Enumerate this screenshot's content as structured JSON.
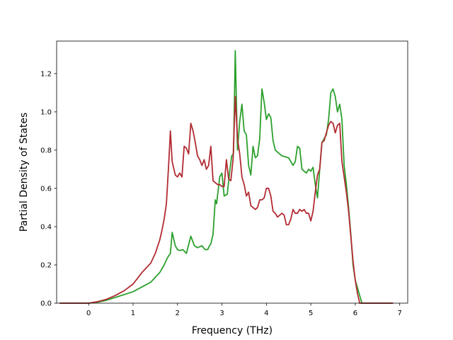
{
  "chart_data": {
    "type": "line",
    "title": "",
    "xlabel": "Frequency (THz)",
    "ylabel": "Partial Density of States",
    "xlim": [
      -0.72,
      7.18
    ],
    "ylim": [
      0.0,
      1.37
    ],
    "xticks": [
      "0",
      "1",
      "2",
      "3",
      "4",
      "5",
      "6",
      "7"
    ],
    "yticks": [
      "0.0",
      "0.2",
      "0.4",
      "0.6",
      "0.8",
      "1.0",
      "1.2"
    ],
    "grid": false,
    "legend": "none",
    "series": [
      {
        "color": "#2ca02c",
        "x": [
          -0.65,
          0.0,
          0.2,
          0.4,
          0.6,
          0.8,
          1.0,
          1.2,
          1.4,
          1.6,
          1.7,
          1.78,
          1.84,
          1.88,
          1.95,
          2.0,
          2.05,
          2.12,
          2.2,
          2.3,
          2.38,
          2.45,
          2.55,
          2.62,
          2.68,
          2.72,
          2.75,
          2.8,
          2.85,
          2.88,
          2.95,
          3.0,
          3.05,
          3.12,
          3.18,
          3.22,
          3.26,
          3.3,
          3.35,
          3.4,
          3.45,
          3.5,
          3.55,
          3.6,
          3.65,
          3.7,
          3.75,
          3.8,
          3.85,
          3.9,
          3.95,
          4.0,
          4.05,
          4.1,
          4.15,
          4.2,
          4.25,
          4.35,
          4.5,
          4.6,
          4.65,
          4.7,
          4.75,
          4.8,
          4.85,
          4.9,
          4.95,
          5.0,
          5.05,
          5.1,
          5.15,
          5.2,
          5.25,
          5.3,
          5.35,
          5.4,
          5.45,
          5.5,
          5.55,
          5.6,
          5.65,
          5.7,
          5.75,
          5.8,
          5.85,
          5.9,
          5.95,
          6.0,
          6.05,
          6.1,
          6.15,
          6.2,
          6.22,
          6.3,
          6.85
        ],
        "y": [
          0.0,
          0.0,
          0.005,
          0.015,
          0.03,
          0.045,
          0.06,
          0.085,
          0.11,
          0.16,
          0.2,
          0.24,
          0.26,
          0.37,
          0.3,
          0.28,
          0.275,
          0.28,
          0.26,
          0.35,
          0.3,
          0.29,
          0.3,
          0.28,
          0.28,
          0.3,
          0.31,
          0.36,
          0.54,
          0.52,
          0.66,
          0.68,
          0.56,
          0.57,
          0.7,
          0.77,
          0.78,
          1.32,
          0.8,
          0.95,
          1.04,
          0.9,
          0.88,
          0.72,
          0.67,
          0.82,
          0.76,
          0.77,
          0.86,
          1.12,
          1.05,
          0.96,
          0.99,
          0.97,
          0.85,
          0.8,
          0.79,
          0.77,
          0.76,
          0.72,
          0.74,
          0.82,
          0.81,
          0.7,
          0.69,
          0.68,
          0.7,
          0.69,
          0.71,
          0.62,
          0.55,
          0.7,
          0.84,
          0.86,
          0.88,
          0.96,
          1.1,
          1.12,
          1.08,
          1.0,
          1.04,
          0.96,
          0.72,
          0.62,
          0.5,
          0.36,
          0.2,
          0.12,
          0.08,
          0.04,
          0.0,
          0.0,
          0.0,
          0.0,
          0.0
        ]
      },
      {
        "color": "#b22b33",
        "x": [
          -0.65,
          0.0,
          0.2,
          0.4,
          0.6,
          0.8,
          1.0,
          1.1,
          1.2,
          1.4,
          1.5,
          1.6,
          1.65,
          1.7,
          1.75,
          1.8,
          1.84,
          1.88,
          1.95,
          2.0,
          2.05,
          2.1,
          2.15,
          2.2,
          2.25,
          2.3,
          2.35,
          2.4,
          2.45,
          2.5,
          2.55,
          2.6,
          2.65,
          2.7,
          2.75,
          2.8,
          2.85,
          2.9,
          2.95,
          3.0,
          3.05,
          3.1,
          3.15,
          3.2,
          3.25,
          3.3,
          3.35,
          3.4,
          3.45,
          3.5,
          3.55,
          3.6,
          3.65,
          3.7,
          3.75,
          3.8,
          3.85,
          3.9,
          3.95,
          4.0,
          4.05,
          4.1,
          4.15,
          4.2,
          4.25,
          4.3,
          4.35,
          4.4,
          4.45,
          4.5,
          4.55,
          4.6,
          4.65,
          4.7,
          4.75,
          4.8,
          4.85,
          4.9,
          4.95,
          5.0,
          5.05,
          5.1,
          5.15,
          5.2,
          5.25,
          5.3,
          5.35,
          5.4,
          5.45,
          5.5,
          5.55,
          5.6,
          5.65,
          5.7,
          5.75,
          5.8,
          5.85,
          5.9,
          5.95,
          6.0,
          6.05,
          6.1,
          6.15,
          6.2,
          6.22,
          6.3,
          6.85
        ],
        "y": [
          0.0,
          0.0,
          0.008,
          0.02,
          0.04,
          0.065,
          0.1,
          0.13,
          0.16,
          0.21,
          0.26,
          0.33,
          0.38,
          0.44,
          0.52,
          0.72,
          0.9,
          0.74,
          0.67,
          0.66,
          0.68,
          0.66,
          0.82,
          0.81,
          0.78,
          0.94,
          0.9,
          0.84,
          0.77,
          0.75,
          0.72,
          0.75,
          0.7,
          0.72,
          0.82,
          0.64,
          0.63,
          0.62,
          0.62,
          0.61,
          0.61,
          0.75,
          0.65,
          0.64,
          0.75,
          1.08,
          0.86,
          0.78,
          0.66,
          0.62,
          0.56,
          0.58,
          0.51,
          0.5,
          0.49,
          0.5,
          0.54,
          0.54,
          0.55,
          0.6,
          0.6,
          0.56,
          0.48,
          0.47,
          0.45,
          0.46,
          0.47,
          0.46,
          0.41,
          0.41,
          0.44,
          0.49,
          0.47,
          0.47,
          0.49,
          0.48,
          0.49,
          0.47,
          0.47,
          0.43,
          0.48,
          0.58,
          0.67,
          0.7,
          0.84,
          0.85,
          0.89,
          0.93,
          0.95,
          0.94,
          0.89,
          0.93,
          0.94,
          0.74,
          0.66,
          0.58,
          0.48,
          0.35,
          0.22,
          0.12,
          0.05,
          0.0,
          0.0,
          0.0,
          0.0,
          0.0,
          0.0
        ]
      }
    ]
  }
}
